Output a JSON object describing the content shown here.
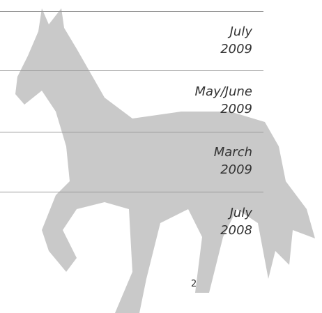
{
  "entries": [
    {
      "month": "July",
      "year": "2009"
    },
    {
      "month": "May/June",
      "year": "2009"
    },
    {
      "month": "March",
      "year": "2009"
    },
    {
      "month": "July",
      "year": "2008"
    }
  ],
  "page_number": "2"
}
